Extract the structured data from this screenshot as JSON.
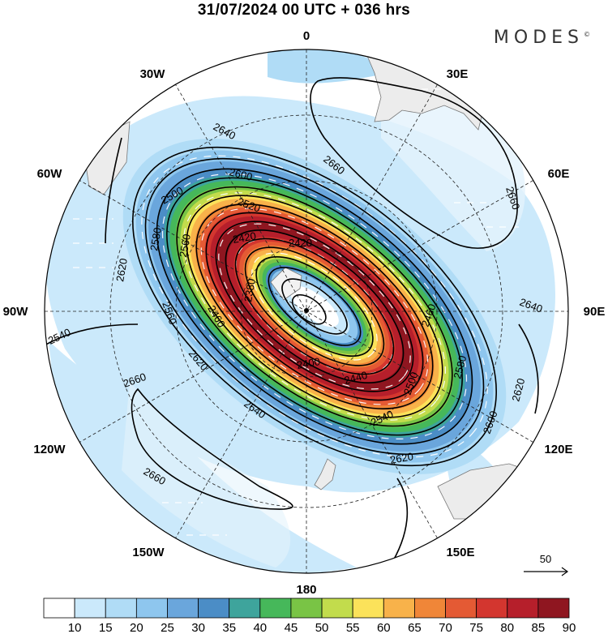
{
  "title": "31/07/2024  00 UTC  + 036 hrs",
  "brand": "MODES",
  "brand_mark": "©",
  "lon_labels": {
    "n0": "0",
    "n30e": "30E",
    "n60e": "60E",
    "n90e": "90E",
    "n120e": "120E",
    "n150e": "150E",
    "n180": "180",
    "n150w": "150W",
    "n120w": "120W",
    "n90w": "90W",
    "n60w": "60W",
    "n30w": "30W"
  },
  "reference_vector": {
    "label": "50",
    "icon": "arrow-right-icon"
  },
  "contour_labels": {
    "c2640_a": "2640",
    "c2600_a": "2600",
    "c2660_a": "2660",
    "c2660_b": "2660",
    "c2500_a": "2500",
    "c2520_a": "2520",
    "c2560_a": "2560",
    "c2580_a": "2580",
    "c2620_a": "2620",
    "c2420_a": "2420",
    "c2420_b": "2420",
    "c2380_a": "2380",
    "c2560_b": "2560",
    "c2460_a": "2460",
    "c2540_a": "2540",
    "c2620_b": "2620",
    "c2660_c": "2660",
    "c2640_b": "2640",
    "c2400_a": "2400",
    "c2440_a": "2440",
    "c2500_b": "2500",
    "c2540_b": "2540",
    "c2460_b": "2460",
    "c2580_b": "2580",
    "c2640_c": "2640",
    "c2620_c": "2620",
    "c2600_b": "2600",
    "c2620_d": "2620",
    "c2660_d": "2660"
  },
  "colorbar": {
    "labels": [
      "10",
      "15",
      "20",
      "25",
      "30",
      "35",
      "40",
      "45",
      "50",
      "55",
      "60",
      "65",
      "70",
      "75",
      "80",
      "85",
      "90"
    ],
    "colors": [
      "#ffffff",
      "#cbe9fb",
      "#b0dcf6",
      "#8ec6ee",
      "#6aa6dc",
      "#4b8dc6",
      "#3ea49c",
      "#46b85a",
      "#79c445",
      "#c2dc4c",
      "#fbe25a",
      "#f8b24a",
      "#f08638",
      "#e45a34",
      "#d3362f",
      "#b61f2b",
      "#8f1620"
    ]
  }
}
